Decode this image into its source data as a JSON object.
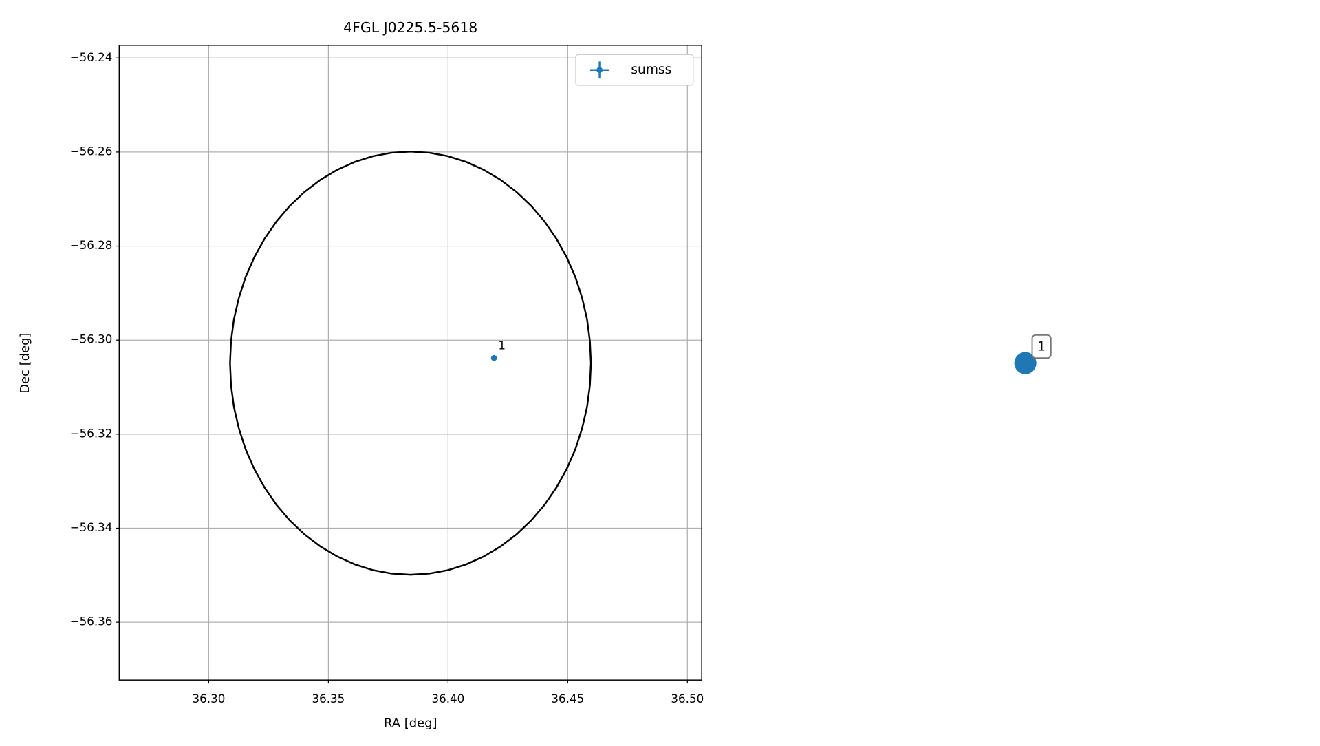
{
  "chart_data": {
    "type": "scatter",
    "title": "4FGL J0225.5-5618",
    "xlabel": "RA [deg]",
    "ylabel": "Dec [deg]",
    "xlim": [
      36.2626,
      36.506
    ],
    "ylim": [
      -56.3723,
      -56.2373
    ],
    "xticks": [
      {
        "value": 36.3,
        "label": "36.30"
      },
      36.35,
      {
        "value": 36.4,
        "label": "36.40"
      },
      36.45,
      {
        "value": 36.5,
        "label": "36.50"
      }
    ],
    "yticks": [
      {
        "value": -56.24,
        "label": "−56.24"
      },
      {
        "value": -56.26,
        "label": "−56.26"
      },
      {
        "value": -56.28,
        "label": "−56.28"
      },
      {
        "value": -56.3,
        "label": "−56.30"
      },
      {
        "value": -56.32,
        "label": "−56.32"
      },
      {
        "value": -56.34,
        "label": "−56.34"
      },
      {
        "value": -56.36,
        "label": "−56.36"
      }
    ],
    "grid": true,
    "legend": "upper right",
    "series": [
      {
        "name": "sumss",
        "color": "#1f77b4",
        "x": [
          36.4192
        ],
        "y": [
          -56.3038
        ],
        "labels": [
          "1"
        ]
      }
    ],
    "ellipse": {
      "center_x": 36.3843,
      "center_y": -56.3049,
      "radius_x": 0.0754,
      "radius_y": 0.045,
      "color": "#000000"
    },
    "side_marker": {
      "label": "1"
    }
  }
}
